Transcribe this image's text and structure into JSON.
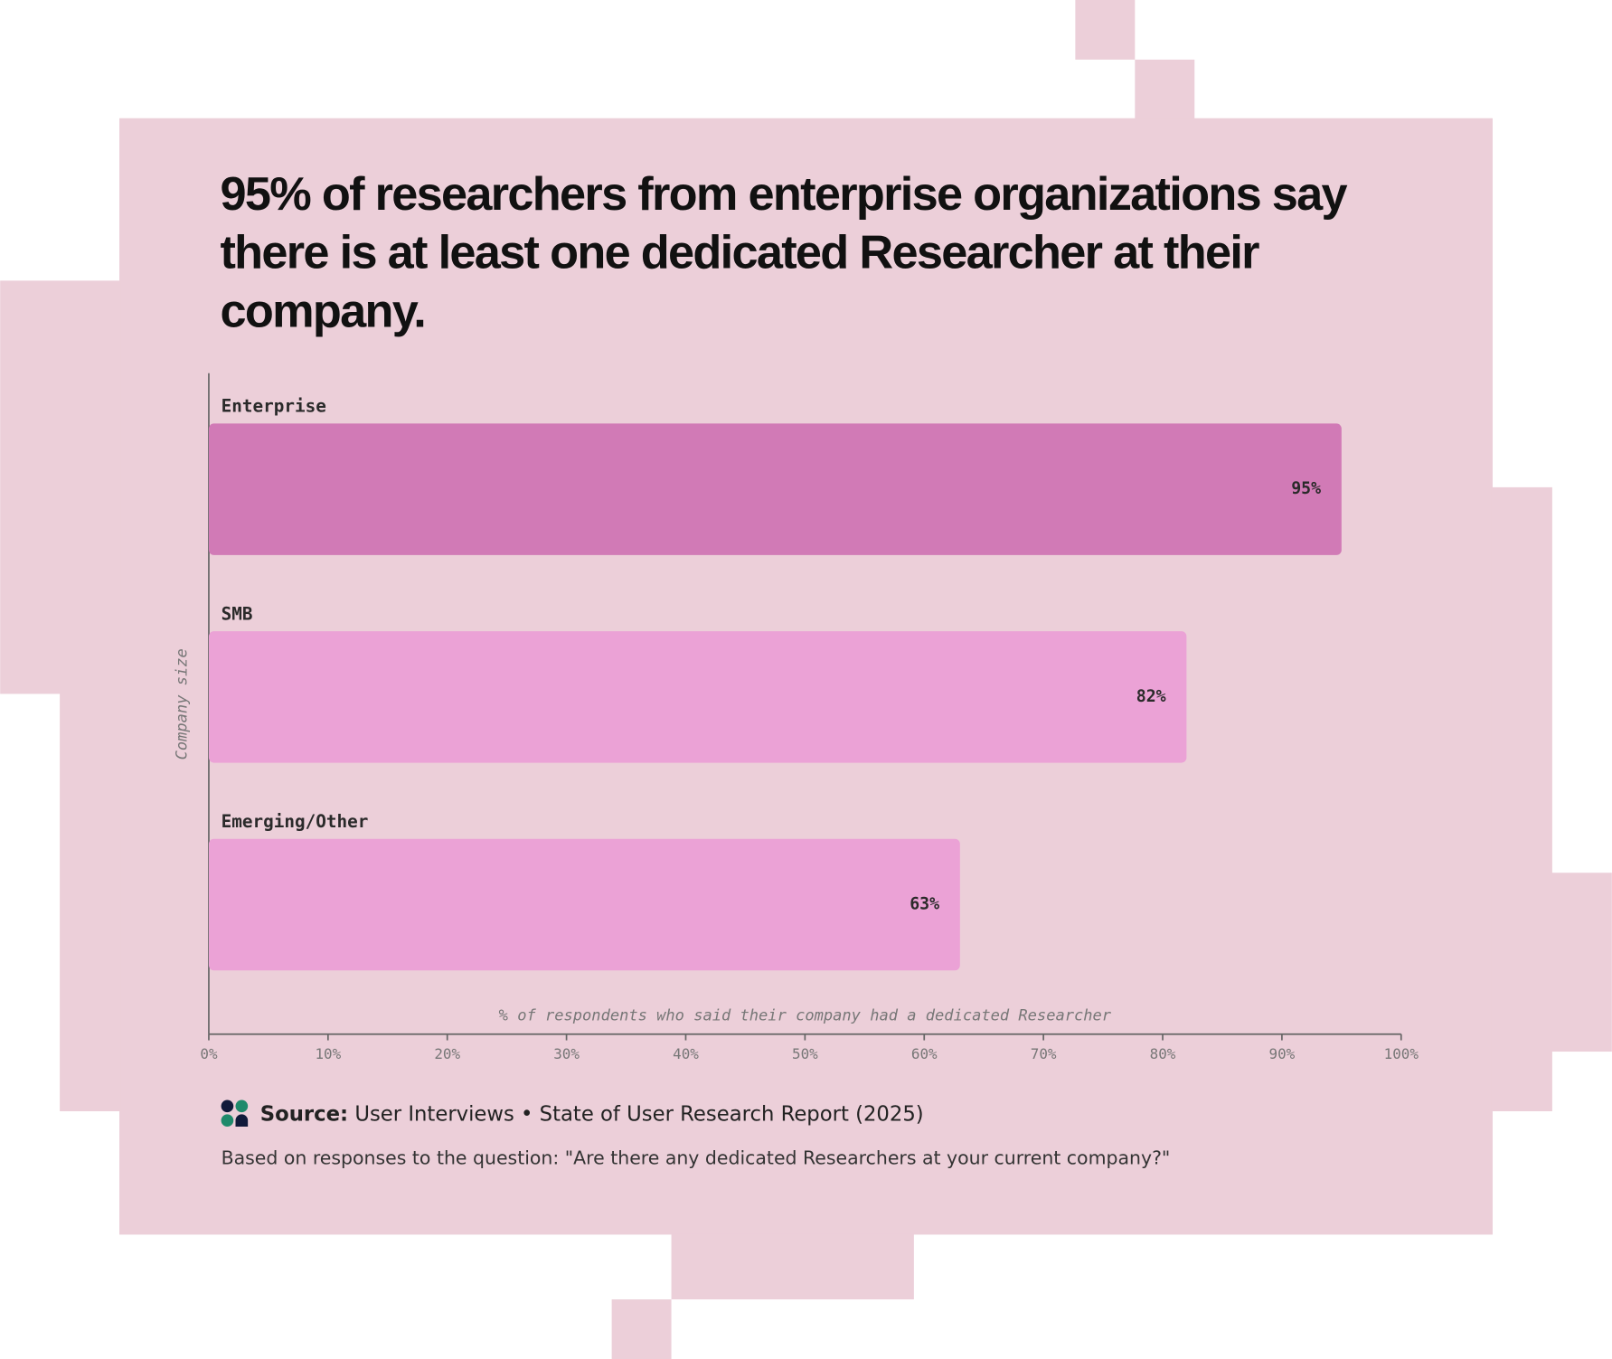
{
  "chart_data": {
    "type": "bar",
    "orientation": "horizontal",
    "title": "95% of researchers from enterprise organizations say there is at least one dedicated Researcher at their company.",
    "categories": [
      "Enterprise",
      "SMB",
      "Emerging/Other"
    ],
    "values": [
      95,
      82,
      63
    ],
    "value_labels": [
      "95%",
      "82%",
      "63%"
    ],
    "colors": [
      "#d17ab6",
      "#eba2d6",
      "#eba2d6"
    ],
    "xlim": [
      0,
      100
    ],
    "xticks": [
      {
        "value": 0,
        "label": "0%"
      },
      {
        "value": 10,
        "label": "10%"
      },
      {
        "value": 20,
        "label": "20%"
      },
      {
        "value": 30,
        "label": "30%"
      },
      {
        "value": 40,
        "label": "40%"
      },
      {
        "value": 50,
        "label": "50%"
      },
      {
        "value": 60,
        "label": "60%"
      },
      {
        "value": 70,
        "label": "70%"
      },
      {
        "value": 80,
        "label": "80%"
      },
      {
        "value": 90,
        "label": "90%"
      },
      {
        "value": 100,
        "label": "100%"
      }
    ],
    "x_label": "% of respondents who said their company had a dedicated Researcher",
    "y_label": "Company size",
    "source_label": "Source:",
    "source": "User Interviews • State of User Research Report (2025)",
    "note": "Based on responses to the question: \"Are there any dedicated Researchers at your current company?\""
  }
}
